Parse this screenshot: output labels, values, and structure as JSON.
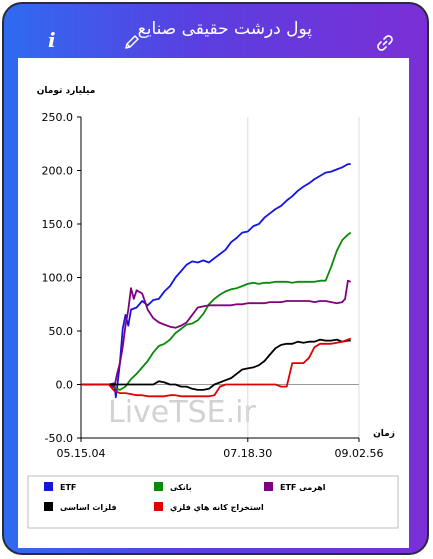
{
  "header": {
    "title": "پول درشت حقیقی صنایع",
    "info_label": "i"
  },
  "watermark": "LiveTSE.ir",
  "chart_data": {
    "type": "line",
    "title": "",
    "ylabel": "ميليارد تومان",
    "xlabel": "زمان",
    "ylim": [
      -50,
      250
    ],
    "yticks": [
      -50,
      0,
      50,
      100,
      150,
      200,
      250
    ],
    "ytick_labels": [
      "-50.0",
      "0.0",
      "50.0",
      "100.0",
      "150.0",
      "200.0",
      "250.0"
    ],
    "xlim": [
      0,
      100
    ],
    "xticks": [
      0,
      60,
      100
    ],
    "xtick_labels": [
      "05.15.04",
      "07.18.30",
      "09.02.56"
    ],
    "grid": "vertical",
    "legend_position": "bottom",
    "series": [
      {
        "name": "ETF",
        "color": "#1414e6",
        "points": [
          [
            0,
            0
          ],
          [
            10,
            0
          ],
          [
            12,
            1
          ],
          [
            12.5,
            -12
          ],
          [
            13,
            -3
          ],
          [
            14,
            20
          ],
          [
            15,
            52
          ],
          [
            16,
            65
          ],
          [
            17,
            55
          ],
          [
            18,
            70
          ],
          [
            20,
            72
          ],
          [
            22,
            78
          ],
          [
            24,
            74
          ],
          [
            26,
            79
          ],
          [
            28,
            80
          ],
          [
            30,
            87
          ],
          [
            32,
            92
          ],
          [
            34,
            100
          ],
          [
            36,
            106
          ],
          [
            38,
            112
          ],
          [
            40,
            115
          ],
          [
            42,
            114
          ],
          [
            44,
            116
          ],
          [
            46,
            114
          ],
          [
            48,
            118
          ],
          [
            50,
            122
          ],
          [
            52,
            126
          ],
          [
            54,
            133
          ],
          [
            56,
            137
          ],
          [
            58,
            142
          ],
          [
            60,
            143
          ],
          [
            62,
            148
          ],
          [
            64,
            150
          ],
          [
            66,
            156
          ],
          [
            68,
            160
          ],
          [
            70,
            164
          ],
          [
            72,
            167
          ],
          [
            74,
            172
          ],
          [
            76,
            176
          ],
          [
            78,
            181
          ],
          [
            80,
            185
          ],
          [
            82,
            188
          ],
          [
            84,
            192
          ],
          [
            86,
            195
          ],
          [
            88,
            198
          ],
          [
            90,
            199
          ],
          [
            92,
            201
          ],
          [
            94,
            203
          ],
          [
            96,
            206
          ],
          [
            97,
            206
          ]
        ]
      },
      {
        "name": "بانکی",
        "color": "#0a8a0a",
        "points": [
          [
            0,
            0
          ],
          [
            10,
            0
          ],
          [
            12,
            -3
          ],
          [
            14,
            -5
          ],
          [
            16,
            -2
          ],
          [
            18,
            5
          ],
          [
            20,
            10
          ],
          [
            22,
            16
          ],
          [
            24,
            22
          ],
          [
            26,
            30
          ],
          [
            28,
            36
          ],
          [
            30,
            38
          ],
          [
            32,
            42
          ],
          [
            34,
            48
          ],
          [
            36,
            52
          ],
          [
            38,
            56
          ],
          [
            40,
            57
          ],
          [
            42,
            60
          ],
          [
            44,
            66
          ],
          [
            46,
            75
          ],
          [
            48,
            80
          ],
          [
            50,
            84
          ],
          [
            52,
            87
          ],
          [
            54,
            89
          ],
          [
            56,
            90
          ],
          [
            58,
            92
          ],
          [
            60,
            94
          ],
          [
            62,
            95
          ],
          [
            64,
            94
          ],
          [
            66,
            95
          ],
          [
            68,
            95
          ],
          [
            70,
            96
          ],
          [
            72,
            96
          ],
          [
            74,
            96
          ],
          [
            76,
            95
          ],
          [
            78,
            96
          ],
          [
            80,
            96
          ],
          [
            82,
            96
          ],
          [
            84,
            96
          ],
          [
            86,
            97
          ],
          [
            88,
            97
          ],
          [
            90,
            110
          ],
          [
            92,
            125
          ],
          [
            94,
            135
          ],
          [
            96,
            140
          ],
          [
            97,
            142
          ]
        ]
      },
      {
        "name": "ETF اهرمی",
        "color": "#800080",
        "points": [
          [
            0,
            0
          ],
          [
            10,
            0
          ],
          [
            12,
            -2
          ],
          [
            13,
            10
          ],
          [
            14,
            20
          ],
          [
            15,
            35
          ],
          [
            16,
            55
          ],
          [
            17,
            70
          ],
          [
            18,
            90
          ],
          [
            19,
            80
          ],
          [
            20,
            88
          ],
          [
            22,
            85
          ],
          [
            24,
            70
          ],
          [
            26,
            62
          ],
          [
            28,
            58
          ],
          [
            30,
            56
          ],
          [
            32,
            54
          ],
          [
            34,
            53
          ],
          [
            36,
            55
          ],
          [
            38,
            58
          ],
          [
            40,
            65
          ],
          [
            42,
            72
          ],
          [
            44,
            73
          ],
          [
            46,
            74
          ],
          [
            48,
            74
          ],
          [
            50,
            74
          ],
          [
            52,
            74
          ],
          [
            54,
            74
          ],
          [
            56,
            75
          ],
          [
            58,
            75
          ],
          [
            60,
            76
          ],
          [
            62,
            76
          ],
          [
            64,
            76
          ],
          [
            66,
            76
          ],
          [
            68,
            77
          ],
          [
            70,
            77
          ],
          [
            72,
            77
          ],
          [
            74,
            78
          ],
          [
            76,
            78
          ],
          [
            78,
            78
          ],
          [
            80,
            78
          ],
          [
            82,
            78
          ],
          [
            84,
            77
          ],
          [
            86,
            78
          ],
          [
            88,
            78
          ],
          [
            90,
            77
          ],
          [
            92,
            76
          ],
          [
            94,
            77
          ],
          [
            95,
            80
          ],
          [
            96,
            97
          ],
          [
            97,
            96
          ]
        ]
      },
      {
        "name": "فلزات اساسی",
        "color": "#000000",
        "points": [
          [
            0,
            0
          ],
          [
            10,
            0
          ],
          [
            14,
            0
          ],
          [
            18,
            0
          ],
          [
            22,
            0
          ],
          [
            26,
            0
          ],
          [
            28,
            3
          ],
          [
            30,
            2
          ],
          [
            32,
            0
          ],
          [
            34,
            0
          ],
          [
            36,
            -2
          ],
          [
            38,
            -2
          ],
          [
            40,
            -4
          ],
          [
            42,
            -5
          ],
          [
            44,
            -5
          ],
          [
            46,
            -4
          ],
          [
            48,
            0
          ],
          [
            50,
            2
          ],
          [
            52,
            4
          ],
          [
            54,
            6
          ],
          [
            56,
            10
          ],
          [
            58,
            14
          ],
          [
            60,
            15
          ],
          [
            62,
            16
          ],
          [
            64,
            18
          ],
          [
            66,
            22
          ],
          [
            68,
            28
          ],
          [
            70,
            34
          ],
          [
            72,
            37
          ],
          [
            74,
            38
          ],
          [
            76,
            38
          ],
          [
            78,
            40
          ],
          [
            80,
            39
          ],
          [
            82,
            40
          ],
          [
            84,
            40
          ],
          [
            86,
            42
          ],
          [
            88,
            41
          ],
          [
            90,
            41
          ],
          [
            92,
            42
          ],
          [
            94,
            40
          ],
          [
            96,
            41
          ],
          [
            97,
            41
          ]
        ]
      },
      {
        "name": "استخراج کانه هاي فلزي",
        "color": "#e00000",
        "points": [
          [
            0,
            0
          ],
          [
            10,
            0
          ],
          [
            12,
            -6
          ],
          [
            14,
            -8
          ],
          [
            16,
            -8
          ],
          [
            18,
            -9
          ],
          [
            20,
            -10
          ],
          [
            22,
            -10
          ],
          [
            24,
            -11
          ],
          [
            26,
            -11
          ],
          [
            28,
            -11
          ],
          [
            30,
            -11
          ],
          [
            32,
            -10
          ],
          [
            34,
            -10
          ],
          [
            36,
            -11
          ],
          [
            38,
            -11
          ],
          [
            40,
            -11
          ],
          [
            42,
            -11
          ],
          [
            44,
            -11
          ],
          [
            46,
            -11
          ],
          [
            48,
            -10
          ],
          [
            50,
            -2
          ],
          [
            52,
            0
          ],
          [
            54,
            0
          ],
          [
            56,
            0
          ],
          [
            58,
            0
          ],
          [
            60,
            0
          ],
          [
            62,
            0
          ],
          [
            64,
            0
          ],
          [
            66,
            0
          ],
          [
            68,
            0
          ],
          [
            70,
            0
          ],
          [
            72,
            -2
          ],
          [
            74,
            -2
          ],
          [
            76,
            20
          ],
          [
            78,
            20
          ],
          [
            80,
            20
          ],
          [
            82,
            25
          ],
          [
            84,
            35
          ],
          [
            86,
            38
          ],
          [
            88,
            38
          ],
          [
            90,
            38
          ],
          [
            92,
            39
          ],
          [
            94,
            40
          ],
          [
            96,
            42
          ],
          [
            97,
            43
          ]
        ]
      }
    ]
  }
}
